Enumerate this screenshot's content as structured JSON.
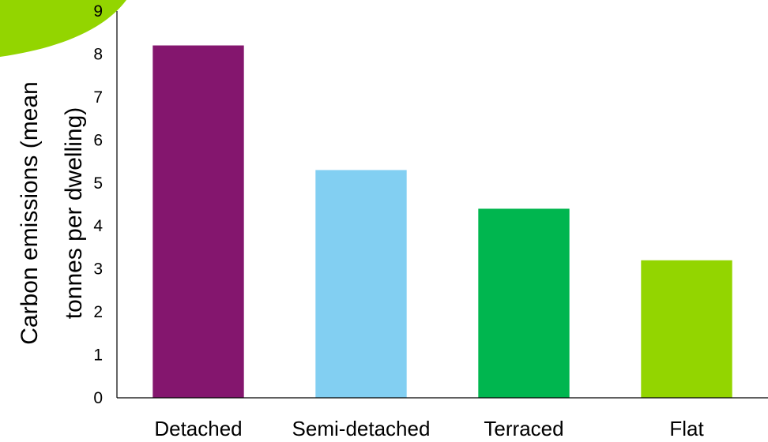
{
  "chart_data": {
    "type": "bar",
    "categories": [
      "Detached",
      "Semi-detached",
      "Terraced",
      "Flat"
    ],
    "values": [
      8.2,
      5.3,
      4.4,
      3.2
    ],
    "colors": [
      "#84166e",
      "#82cff2",
      "#00b64f",
      "#93d500"
    ],
    "title": "",
    "xlabel": "",
    "ylabel_lines": [
      "Carbon emissions (mean",
      "tonnes per dwelling)"
    ],
    "ylim": [
      0,
      9
    ],
    "yticks": [
      "0",
      "1",
      "2",
      "3",
      "4",
      "5",
      "6",
      "7",
      "8",
      "9"
    ],
    "grid": false,
    "legend": "none"
  },
  "decor": {
    "corner_shape_color": "#93d500"
  }
}
